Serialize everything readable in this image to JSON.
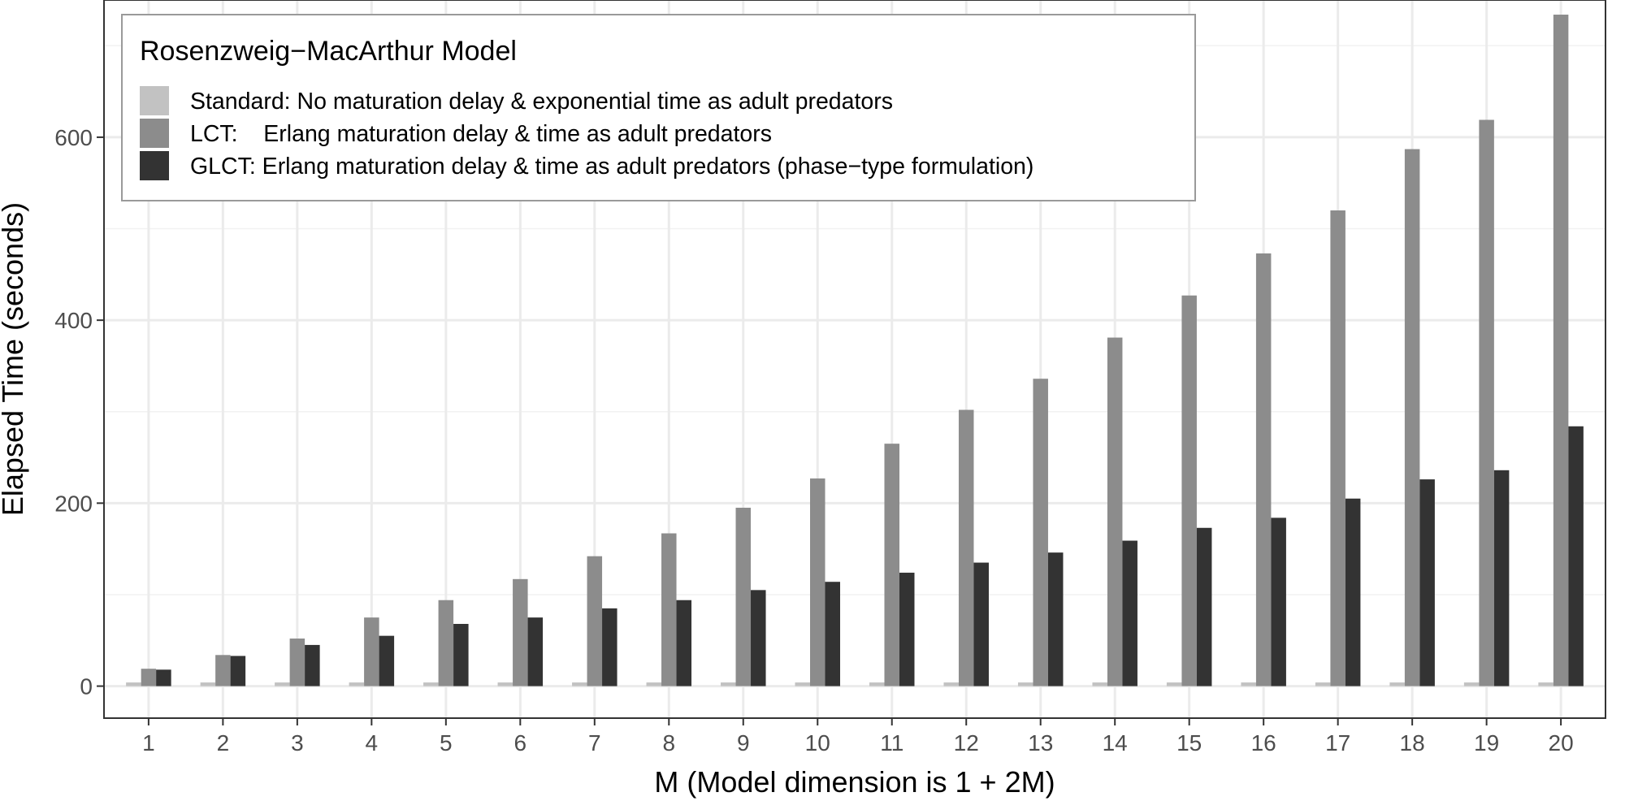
{
  "chart_data": {
    "type": "bar",
    "title": "",
    "xlabel": "M (Model dimension is 1 + 2M)",
    "ylabel": "Elapsed Time (seconds)",
    "categories": [
      "1",
      "2",
      "3",
      "4",
      "5",
      "6",
      "7",
      "8",
      "9",
      "10",
      "11",
      "12",
      "13",
      "14",
      "15",
      "16",
      "17",
      "18",
      "19",
      "20"
    ],
    "ylim": [
      -35,
      750
    ],
    "yticks": [
      0,
      200,
      400,
      600
    ],
    "ytick_labels": [
      "0",
      "200",
      "400",
      "600"
    ],
    "grid": true,
    "legend": {
      "title": "Rosenzweig−MacArthur Model",
      "placement": "top-left"
    },
    "series": [
      {
        "name": "Standard: No maturation delay & exponential time as adult predators",
        "color": "#c2c2c2",
        "values": [
          4,
          4,
          4,
          4,
          4,
          4,
          4,
          4,
          4,
          4,
          4,
          4,
          4,
          4,
          4,
          4,
          4,
          4,
          4,
          4
        ]
      },
      {
        "name": "LCT:    Erlang maturation delay & time as adult predators",
        "color": "#8c8c8c",
        "values": [
          19,
          34,
          52,
          75,
          94,
          117,
          142,
          167,
          195,
          227,
          265,
          302,
          336,
          381,
          427,
          473,
          520,
          587,
          619,
          734
        ]
      },
      {
        "name": "GLCT: Erlang maturation delay & time as adult predators (phase−type formulation)",
        "color": "#333333",
        "values": [
          18,
          33,
          45,
          55,
          68,
          75,
          85,
          94,
          105,
          114,
          124,
          135,
          146,
          159,
          173,
          184,
          205,
          226,
          236,
          284
        ]
      }
    ]
  }
}
